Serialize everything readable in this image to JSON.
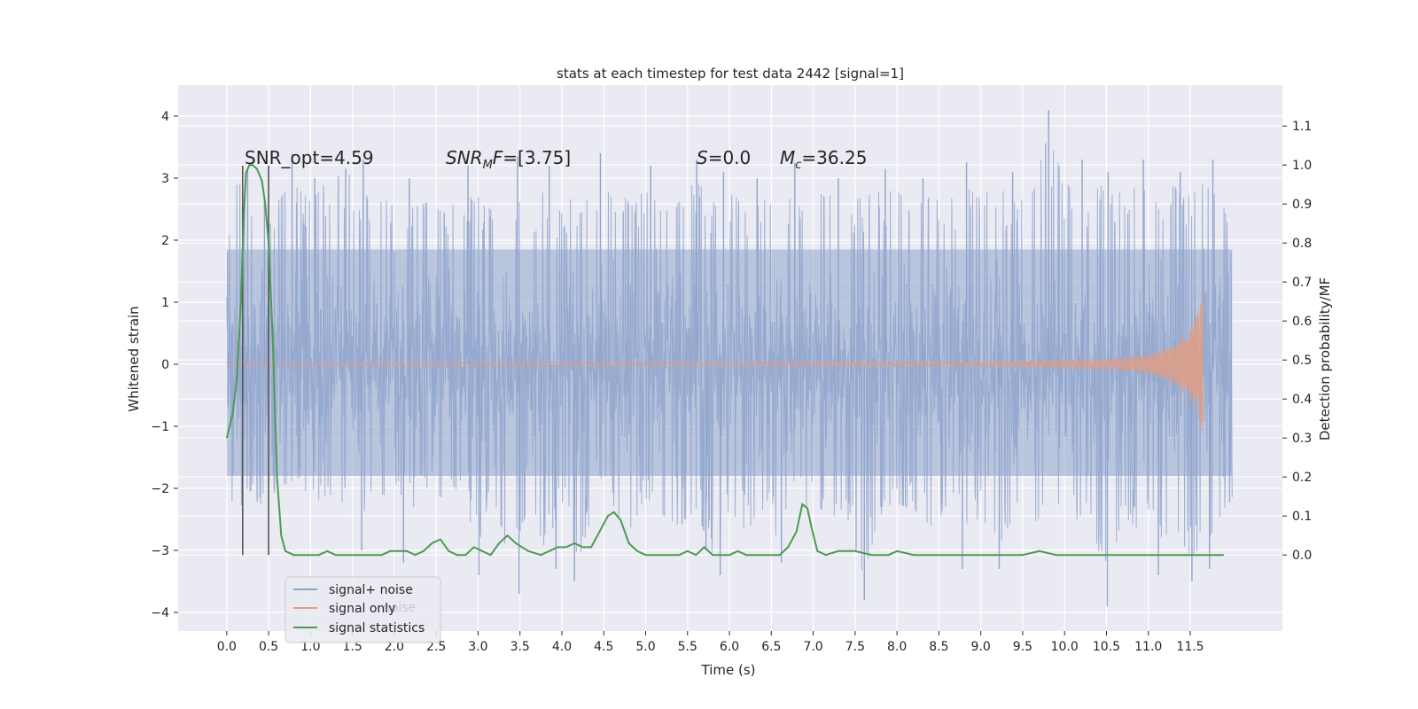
{
  "chart_data": {
    "type": "line",
    "title": "stats at each timestep for test data 2442 [signal=1]",
    "xlabel": "Time (s)",
    "ylabel": "Whitened strain",
    "ylabel_right": "Detection probability/MF",
    "xlim": [
      -0.58,
      12.6
    ],
    "ylim": [
      -4.3,
      4.5
    ],
    "ylim_right": [
      -0.195,
      1.205
    ],
    "x_ticks": [
      "0.0",
      "0.5",
      "1.0",
      "1.5",
      "2.0",
      "2.5",
      "3.0",
      "3.5",
      "4.0",
      "4.5",
      "5.0",
      "5.5",
      "6.0",
      "6.5",
      "7.0",
      "7.5",
      "8.0",
      "8.5",
      "9.0",
      "9.5",
      "10.0",
      "10.5",
      "11.0",
      "11.5"
    ],
    "y_ticks": [
      "4",
      "3",
      "2",
      "1",
      "0",
      "−1",
      "−2",
      "−3",
      "−4"
    ],
    "y_ticks_right": [
      "1.1",
      "1.0",
      "0.9",
      "0.8",
      "0.7",
      "0.6",
      "0.5",
      "0.4",
      "0.3",
      "0.2",
      "0.1",
      "0.0"
    ],
    "grid": true,
    "legend_placement": "lower-left",
    "legend": [
      {
        "label": "signal+ noise",
        "color": "#8fa4cc"
      },
      {
        "label": "signal only",
        "color": "#dd9f88"
      },
      {
        "label": "signal statistics",
        "color": "#4c9a52"
      }
    ],
    "ghost_legend_text": "noise",
    "annotations": [
      {
        "text": "SNR_opt=4.59",
        "x": 0.2,
        "y": 3.2
      },
      {
        "text": "SNR_M F=[3.75]",
        "x": 2.6,
        "y": 3.2
      },
      {
        "text": "S=0.0",
        "x": 5.6,
        "y": 3.2
      },
      {
        "text": "M_c=36.25",
        "x": 6.6,
        "y": 3.2
      }
    ],
    "markers": [
      0.19,
      0.5
    ],
    "series": [
      {
        "name": "signal+ noise",
        "color": "#8fa4cc",
        "x_range": [
          0.0,
          12.0
        ],
        "envelope": [
          [
            0.0,
            1.9,
            -2.2
          ],
          [
            0.1,
            3.2,
            -2.6
          ],
          [
            0.3,
            3.3,
            -2.4
          ],
          [
            0.5,
            2.6,
            -2.6
          ],
          [
            0.6,
            2.9,
            -2.2
          ],
          [
            0.8,
            3.3,
            -2.1
          ],
          [
            1.0,
            2.9,
            -2.5
          ],
          [
            1.3,
            3.5,
            -2.3
          ],
          [
            1.6,
            3.3,
            -3.0
          ],
          [
            1.8,
            2.9,
            -2.3
          ],
          [
            2.0,
            3.2,
            -2.4
          ],
          [
            2.2,
            2.8,
            -2.6
          ],
          [
            2.4,
            2.9,
            -2.3
          ],
          [
            2.6,
            2.7,
            -2.4
          ],
          [
            2.8,
            3.0,
            -2.4
          ],
          [
            3.0,
            3.0,
            -3.2
          ],
          [
            3.2,
            2.9,
            -2.5
          ],
          [
            3.4,
            3.3,
            -3.7
          ],
          [
            3.6,
            2.9,
            -2.5
          ],
          [
            3.8,
            3.1,
            -3.3
          ],
          [
            4.0,
            2.7,
            -2.5
          ],
          [
            4.2,
            3.2,
            -3.5
          ],
          [
            4.4,
            2.8,
            -2.5
          ],
          [
            4.6,
            3.3,
            -2.6
          ],
          [
            4.8,
            2.9,
            -3.0
          ],
          [
            5.0,
            3.1,
            -2.4
          ],
          [
            5.2,
            2.8,
            -2.7
          ],
          [
            5.4,
            2.9,
            -2.9
          ],
          [
            5.6,
            3.3,
            -2.6
          ],
          [
            5.8,
            2.9,
            -3.4
          ],
          [
            6.0,
            3.2,
            -2.6
          ],
          [
            6.2,
            2.7,
            -3.0
          ],
          [
            6.4,
            2.9,
            -2.6
          ],
          [
            6.6,
            3.2,
            -3.2
          ],
          [
            6.8,
            2.8,
            -2.5
          ],
          [
            7.0,
            3.0,
            -2.6
          ],
          [
            7.2,
            3.1,
            -2.7
          ],
          [
            7.4,
            2.9,
            -2.8
          ],
          [
            7.6,
            3.0,
            -3.8
          ],
          [
            7.8,
            3.1,
            -2.7
          ],
          [
            8.0,
            3.1,
            -2.5
          ],
          [
            8.2,
            2.8,
            -2.6
          ],
          [
            8.4,
            3.0,
            -2.9
          ],
          [
            8.6,
            2.9,
            -2.6
          ],
          [
            8.8,
            3.2,
            -3.1
          ],
          [
            9.0,
            3.0,
            -2.7
          ],
          [
            9.2,
            3.2,
            -3.3
          ],
          [
            9.4,
            2.9,
            -2.7
          ],
          [
            9.6,
            3.0,
            -2.9
          ],
          [
            9.8,
            4.1,
            -2.6
          ],
          [
            10.0,
            3.3,
            -3.0
          ],
          [
            10.2,
            2.9,
            -2.7
          ],
          [
            10.4,
            3.3,
            -3.3
          ],
          [
            10.5,
            3.0,
            -3.9
          ],
          [
            10.7,
            3.1,
            -2.7
          ],
          [
            10.9,
            3.3,
            -3.0
          ],
          [
            11.1,
            3.0,
            -3.4
          ],
          [
            11.3,
            3.2,
            -2.8
          ],
          [
            11.5,
            3.0,
            -3.5
          ],
          [
            11.7,
            3.3,
            -3.2
          ],
          [
            11.9,
            2.9,
            -2.6
          ],
          [
            12.0,
            2.0,
            -2.4
          ]
        ],
        "dense_band": [
          -1.8,
          1.85
        ],
        "spikes": [
          [
            0.25,
            3.15
          ],
          [
            0.45,
            2.7
          ],
          [
            0.78,
            3.4
          ],
          [
            1.05,
            3.0
          ],
          [
            1.42,
            3.15
          ],
          [
            1.63,
            3.3
          ],
          [
            2.18,
            3.0
          ],
          [
            2.88,
            3.2
          ],
          [
            3.47,
            3.35
          ],
          [
            3.85,
            3.2
          ],
          [
            4.46,
            3.4
          ],
          [
            5.06,
            3.2
          ],
          [
            5.61,
            3.3
          ],
          [
            5.93,
            3.1
          ],
          [
            6.33,
            3.0
          ],
          [
            6.78,
            3.25
          ],
          [
            7.3,
            3.0
          ],
          [
            7.86,
            3.15
          ],
          [
            8.31,
            3.0
          ],
          [
            8.83,
            3.25
          ],
          [
            9.38,
            3.1
          ],
          [
            9.81,
            4.1
          ],
          [
            10.21,
            3.3
          ],
          [
            10.52,
            3.1
          ],
          [
            10.94,
            3.3
          ],
          [
            11.38,
            3.1
          ],
          [
            11.77,
            3.3
          ],
          [
            1.61,
            -3.0
          ],
          [
            2.11,
            -3.2
          ],
          [
            3.01,
            -3.4
          ],
          [
            3.49,
            -3.7
          ],
          [
            3.93,
            -3.3
          ],
          [
            4.15,
            -3.5
          ],
          [
            5.72,
            -3.0
          ],
          [
            5.89,
            -3.4
          ],
          [
            6.62,
            -3.2
          ],
          [
            7.61,
            -3.8
          ],
          [
            8.78,
            -3.3
          ],
          [
            9.22,
            -3.3
          ],
          [
            10.51,
            -3.9
          ],
          [
            11.12,
            -3.4
          ],
          [
            11.52,
            -3.5
          ],
          [
            11.73,
            -3.3
          ]
        ]
      },
      {
        "name": "signal only",
        "color": "#dd9f88",
        "x_range": [
          0.0,
          11.65
        ],
        "description_points": [
          [
            0.0,
            0.02
          ],
          [
            9.0,
            0.04
          ],
          [
            10.5,
            0.08
          ],
          [
            11.0,
            0.15
          ],
          [
            11.3,
            0.3
          ],
          [
            11.5,
            0.55
          ],
          [
            11.6,
            0.9
          ],
          [
            11.65,
            1.15
          ]
        ]
      },
      {
        "name": "signal statistics",
        "color": "#4c9a52",
        "axis": "right",
        "x": [
          0.0,
          0.07,
          0.12,
          0.17,
          0.2,
          0.23,
          0.27,
          0.31,
          0.36,
          0.42,
          0.46,
          0.5,
          0.55,
          0.6,
          0.65,
          0.7,
          0.8,
          0.9,
          1.0,
          1.1,
          1.2,
          1.3,
          1.5,
          1.7,
          1.85,
          1.95,
          2.05,
          2.15,
          2.25,
          2.35,
          2.45,
          2.55,
          2.65,
          2.75,
          2.85,
          2.95,
          3.05,
          3.15,
          3.25,
          3.35,
          3.45,
          3.6,
          3.75,
          3.85,
          3.95,
          4.05,
          4.15,
          4.25,
          4.35,
          4.45,
          4.55,
          4.62,
          4.7,
          4.8,
          4.9,
          5.0,
          5.2,
          5.4,
          5.5,
          5.6,
          5.7,
          5.8,
          5.9,
          6.0,
          6.1,
          6.2,
          6.3,
          6.4,
          6.5,
          6.6,
          6.7,
          6.8,
          6.87,
          6.93,
          6.98,
          7.05,
          7.15,
          7.3,
          7.5,
          7.7,
          7.9,
          8.0,
          8.2,
          8.5,
          9.0,
          9.5,
          9.7,
          9.9,
          10.5,
          11.0,
          11.5,
          11.9
        ],
        "y": [
          0.3,
          0.36,
          0.45,
          0.65,
          0.85,
          0.98,
          1.0,
          1.0,
          0.99,
          0.96,
          0.9,
          0.8,
          0.55,
          0.2,
          0.05,
          0.01,
          0.0,
          0.0,
          0.0,
          0.0,
          0.01,
          0.0,
          0.0,
          0.0,
          0.0,
          0.01,
          0.01,
          0.01,
          0.0,
          0.01,
          0.03,
          0.04,
          0.01,
          0.0,
          0.0,
          0.02,
          0.01,
          0.0,
          0.03,
          0.05,
          0.03,
          0.01,
          0.0,
          0.01,
          0.02,
          0.02,
          0.03,
          0.02,
          0.02,
          0.06,
          0.1,
          0.11,
          0.09,
          0.03,
          0.01,
          0.0,
          0.0,
          0.0,
          0.01,
          0.0,
          0.02,
          0.0,
          0.0,
          0.0,
          0.01,
          0.0,
          0.0,
          0.0,
          0.0,
          0.0,
          0.02,
          0.06,
          0.13,
          0.12,
          0.07,
          0.01,
          0.0,
          0.01,
          0.01,
          0.0,
          0.0,
          0.01,
          0.0,
          0.0,
          0.0,
          0.0,
          0.01,
          0.0,
          0.0,
          0.0,
          0.0,
          0.0
        ]
      }
    ]
  }
}
